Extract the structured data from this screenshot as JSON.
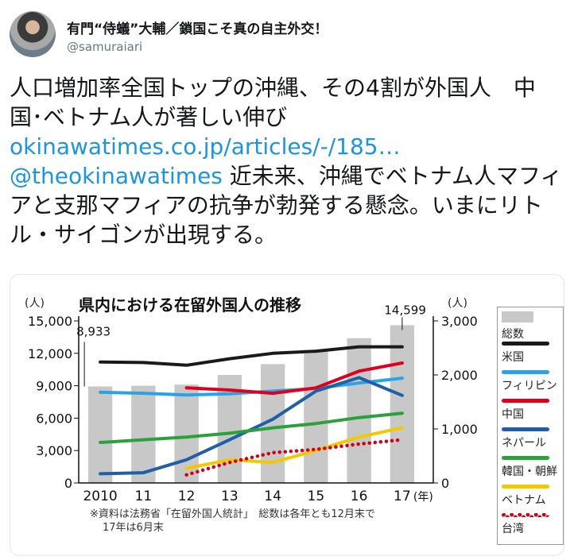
{
  "tweet": {
    "display_name": "有門“侍蟻”大輔／鎖国こそ真の自主外交！",
    "handle": "@samuraiari",
    "text_line1": "人口増加率全国トップの沖縄、その4割が外国人　中国･ベトナム人が著しい伸び",
    "link": "okinawatimes.co.jp/articles/-/185…",
    "mention": "@theokinawatimes",
    "text_line2": " 近未来、沖縄でベトナム人マフィアと支那マフィアの抗争が勃発する懸念。いまにリトル・サイゴンが出現する。"
  },
  "chart_data": {
    "type": "bar",
    "title": "県内における在留外国人の推移",
    "categories": [
      "2010",
      "11",
      "12",
      "13",
      "14",
      "15",
      "16",
      "17"
    ],
    "x_suffix": "(年)",
    "left_axis": {
      "unit": "(人)",
      "ticks": [
        "15,000",
        "12,000",
        "9,000",
        "6,000",
        "3,000",
        "0"
      ],
      "range": [
        0,
        15000
      ]
    },
    "right_axis": {
      "unit": "(人)",
      "ticks": [
        "3,000",
        "2,000",
        "1,000",
        "0"
      ],
      "range": [
        0,
        3000
      ]
    },
    "totals": {
      "name": "総数",
      "values": [
        8933,
        9000,
        9100,
        10000,
        11000,
        12300,
        13400,
        14599
      ],
      "color": "#c8c8c8"
    },
    "annotations": {
      "first": "8,933",
      "last": "14,599"
    },
    "series": [
      {
        "name": "米国",
        "color": "#1a1a1a",
        "style": "solid",
        "values": [
          2240,
          2230,
          2180,
          2300,
          2400,
          2440,
          2520,
          2520
        ]
      },
      {
        "name": "フィリピン",
        "color": "#29a3e6",
        "style": "solid",
        "values": [
          1680,
          1660,
          1630,
          1650,
          1700,
          1750,
          1850,
          1940
        ]
      },
      {
        "name": "中国",
        "color": "#e0001b",
        "style": "solid",
        "values": [
          null,
          null,
          1760,
          1720,
          1660,
          1760,
          2070,
          2220
        ]
      },
      {
        "name": "ネパール",
        "color": "#1f5fa8",
        "style": "solid",
        "values": [
          170,
          190,
          430,
          800,
          1180,
          1700,
          1950,
          1620
        ]
      },
      {
        "name": "韓国・朝鮮",
        "color": "#2aa13a",
        "style": "solid",
        "values": [
          750,
          800,
          850,
          920,
          1020,
          1100,
          1210,
          1290
        ]
      },
      {
        "name": "ベトナム",
        "color": "#f2c900",
        "style": "solid",
        "values": [
          null,
          null,
          270,
          430,
          380,
          600,
          850,
          1020
        ]
      },
      {
        "name": "台湾",
        "color": "#d3001c",
        "style": "dotted",
        "values": [
          null,
          null,
          150,
          380,
          560,
          620,
          720,
          800
        ]
      }
    ],
    "note_line1": "※資料は法務省「在留外国人統計」　総数は各年とも12月末で",
    "note_line2": "17年は6月末"
  }
}
